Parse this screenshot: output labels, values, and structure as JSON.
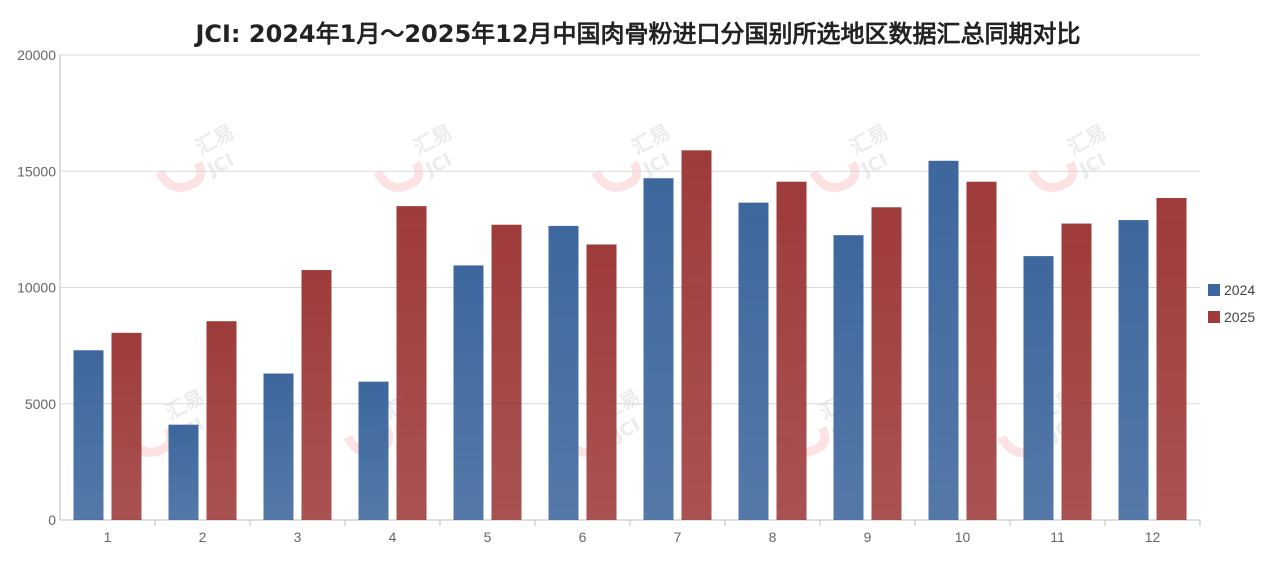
{
  "chart_data": {
    "type": "bar",
    "title": "JCI: 2024年1月～2025年12月中国肉骨粉进口分国别所选地区数据汇总同期对比",
    "xlabel": "",
    "ylabel": "",
    "categories": [
      "1",
      "2",
      "3",
      "4",
      "5",
      "6",
      "7",
      "8",
      "9",
      "10",
      "11",
      "12"
    ],
    "series": [
      {
        "name": "2024",
        "color": "#3d679d",
        "values": [
          7300,
          4100,
          6300,
          5950,
          10950,
          12650,
          14700,
          13650,
          12250,
          15450,
          11350,
          12900
        ]
      },
      {
        "name": "2025",
        "color": "#9e3b3b",
        "values": [
          8050,
          8550,
          10750,
          13500,
          12700,
          11850,
          15900,
          14550,
          13450,
          14550,
          12750,
          13850
        ]
      }
    ],
    "ylim": [
      0,
      20000
    ],
    "yticks": [
      "0",
      "5000",
      "10000",
      "15000",
      "20000"
    ],
    "grid": true,
    "legend_position": "right"
  },
  "watermark": {
    "brand": "汇易",
    "code": "JCI"
  }
}
